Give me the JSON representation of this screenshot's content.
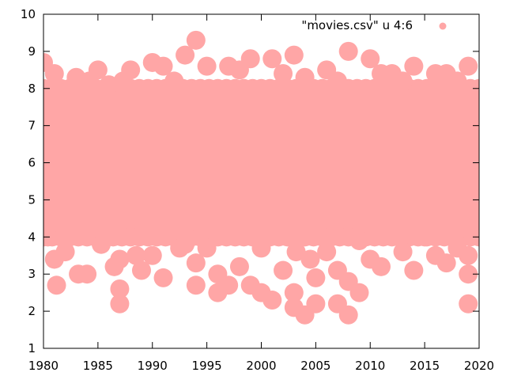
{
  "chart_data": {
    "type": "scatter",
    "title": "",
    "xlabel": "",
    "ylabel": "",
    "xlim": [
      1980,
      2020
    ],
    "ylim": [
      1,
      10
    ],
    "xticks": [
      1980,
      1985,
      1990,
      1995,
      2000,
      2005,
      2010,
      2015,
      2020
    ],
    "yticks": [
      1,
      2,
      3,
      4,
      5,
      6,
      7,
      8,
      9,
      10
    ],
    "xtick_labels": [
      "1980",
      "1985",
      "1990",
      "1995",
      "2000",
      "2005",
      "2010",
      "2015",
      "2020"
    ],
    "ytick_labels": [
      "1",
      "2",
      "3",
      "4",
      "5",
      "6",
      "7",
      "8",
      "9",
      "10"
    ],
    "grid": false,
    "legend_position": "top-right",
    "legend_label": "\"movies.csv\" u 4:6",
    "marker_color": "#ffa6a6",
    "series": [
      {
        "name": "\"movies.csv\" u 4:6",
        "points": [
          [
            1980.0,
            8.7
          ],
          [
            1980.4,
            4.0
          ],
          [
            1981.0,
            8.4
          ],
          [
            1981.0,
            3.4
          ],
          [
            1981.2,
            2.7
          ],
          [
            1982.0,
            3.6
          ],
          [
            1983.0,
            8.3
          ],
          [
            1983.2,
            3.0
          ],
          [
            1984.0,
            3.0
          ],
          [
            1984.2,
            8.2
          ],
          [
            1985.0,
            8.5
          ],
          [
            1985.3,
            3.8
          ],
          [
            1986.0,
            8.1
          ],
          [
            1986.5,
            3.2
          ],
          [
            1987.0,
            3.4
          ],
          [
            1987.0,
            2.6
          ],
          [
            1987.0,
            2.2
          ],
          [
            1987.3,
            8.2
          ],
          [
            1988.0,
            8.5
          ],
          [
            1988.5,
            3.5
          ],
          [
            1989.0,
            3.1
          ],
          [
            1990.0,
            8.7
          ],
          [
            1990.0,
            3.5
          ],
          [
            1991.0,
            8.6
          ],
          [
            1991.0,
            2.9
          ],
          [
            1992.0,
            8.2
          ],
          [
            1992.5,
            3.7
          ],
          [
            1993.0,
            8.9
          ],
          [
            1993.0,
            3.8
          ],
          [
            1994.0,
            9.3
          ],
          [
            1994.0,
            2.7
          ],
          [
            1994.0,
            3.3
          ],
          [
            1995.0,
            8.6
          ],
          [
            1995.0,
            3.7
          ],
          [
            1996.0,
            2.5
          ],
          [
            1996.0,
            3.0
          ],
          [
            1997.0,
            8.6
          ],
          [
            1997.0,
            2.7
          ],
          [
            1998.0,
            3.2
          ],
          [
            1998.0,
            8.5
          ],
          [
            1999.0,
            8.8
          ],
          [
            1999.0,
            2.7
          ],
          [
            2000.0,
            2.5
          ],
          [
            2000.0,
            3.7
          ],
          [
            2001.0,
            8.8
          ],
          [
            2001.0,
            2.3
          ],
          [
            2002.0,
            3.1
          ],
          [
            2002.0,
            8.4
          ],
          [
            2003.0,
            8.9
          ],
          [
            2003.0,
            2.1
          ],
          [
            2003.0,
            2.5
          ],
          [
            2003.2,
            3.6
          ],
          [
            2004.0,
            8.3
          ],
          [
            2004.0,
            1.9
          ],
          [
            2004.5,
            3.4
          ],
          [
            2005.0,
            2.2
          ],
          [
            2005.0,
            2.9
          ],
          [
            2006.0,
            8.5
          ],
          [
            2006.0,
            3.6
          ],
          [
            2007.0,
            2.2
          ],
          [
            2007.0,
            3.1
          ],
          [
            2007.0,
            8.2
          ],
          [
            2008.0,
            9.0
          ],
          [
            2008.0,
            1.9
          ],
          [
            2008.0,
            2.8
          ],
          [
            2009.0,
            2.5
          ],
          [
            2009.0,
            3.9
          ],
          [
            2010.0,
            8.8
          ],
          [
            2010.0,
            3.4
          ],
          [
            2011.0,
            3.2
          ],
          [
            2011.0,
            8.4
          ],
          [
            2012.0,
            8.4
          ],
          [
            2013.0,
            3.6
          ],
          [
            2013.0,
            8.2
          ],
          [
            2014.0,
            8.6
          ],
          [
            2014.0,
            3.1
          ],
          [
            2015.0,
            4.0
          ],
          [
            2015.5,
            8.0
          ],
          [
            2016.0,
            3.5
          ],
          [
            2016.0,
            8.4
          ],
          [
            2017.0,
            8.4
          ],
          [
            2017.0,
            3.3
          ],
          [
            2018.0,
            8.2
          ],
          [
            2018.0,
            3.7
          ],
          [
            2019.0,
            2.2
          ],
          [
            2019.0,
            8.6
          ],
          [
            2019.0,
            3.0
          ],
          [
            2019.0,
            4.2
          ],
          [
            2019.0,
            3.5
          ]
        ]
      }
    ],
    "dense_band": {
      "y_min": 4.0,
      "y_max": 8.0
    }
  }
}
